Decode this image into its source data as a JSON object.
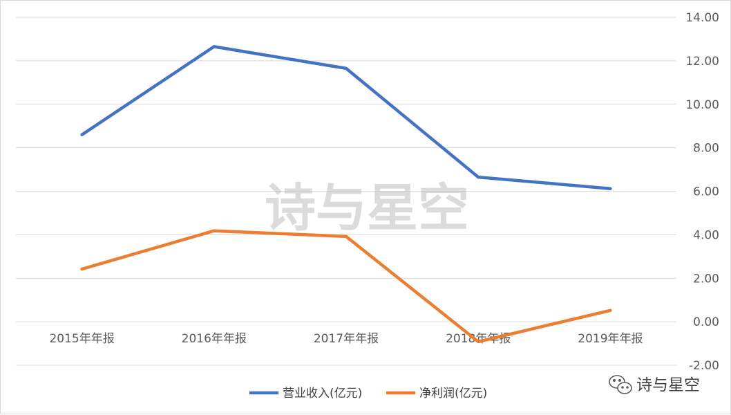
{
  "chart_data": {
    "type": "line",
    "categories": [
      "2015年年报",
      "2016年年报",
      "2017年年报",
      "2018年年报",
      "2019年年报"
    ],
    "series": [
      {
        "name": "营业收入(亿元)",
        "color": "#4472C4",
        "values": [
          8.6,
          12.65,
          11.65,
          6.65,
          6.12
        ]
      },
      {
        "name": "净利润(亿元)",
        "color": "#ED7D31",
        "values": [
          2.42,
          4.18,
          3.92,
          -0.92,
          0.52
        ]
      }
    ],
    "ylim": [
      -2,
      14
    ],
    "yticks": [
      "14.00",
      "12.00",
      "10.00",
      "8.00",
      "6.00",
      "4.00",
      "2.00",
      "0.00",
      "-2.00"
    ],
    "ytick_values": [
      14,
      12,
      10,
      8,
      6,
      4,
      2,
      0,
      -2
    ],
    "grid": true,
    "legend": "bottom",
    "y_axis_side": "right"
  },
  "watermark": "诗与星空",
  "brand": {
    "icon": "wechat-icon",
    "label": "诗与星空"
  }
}
